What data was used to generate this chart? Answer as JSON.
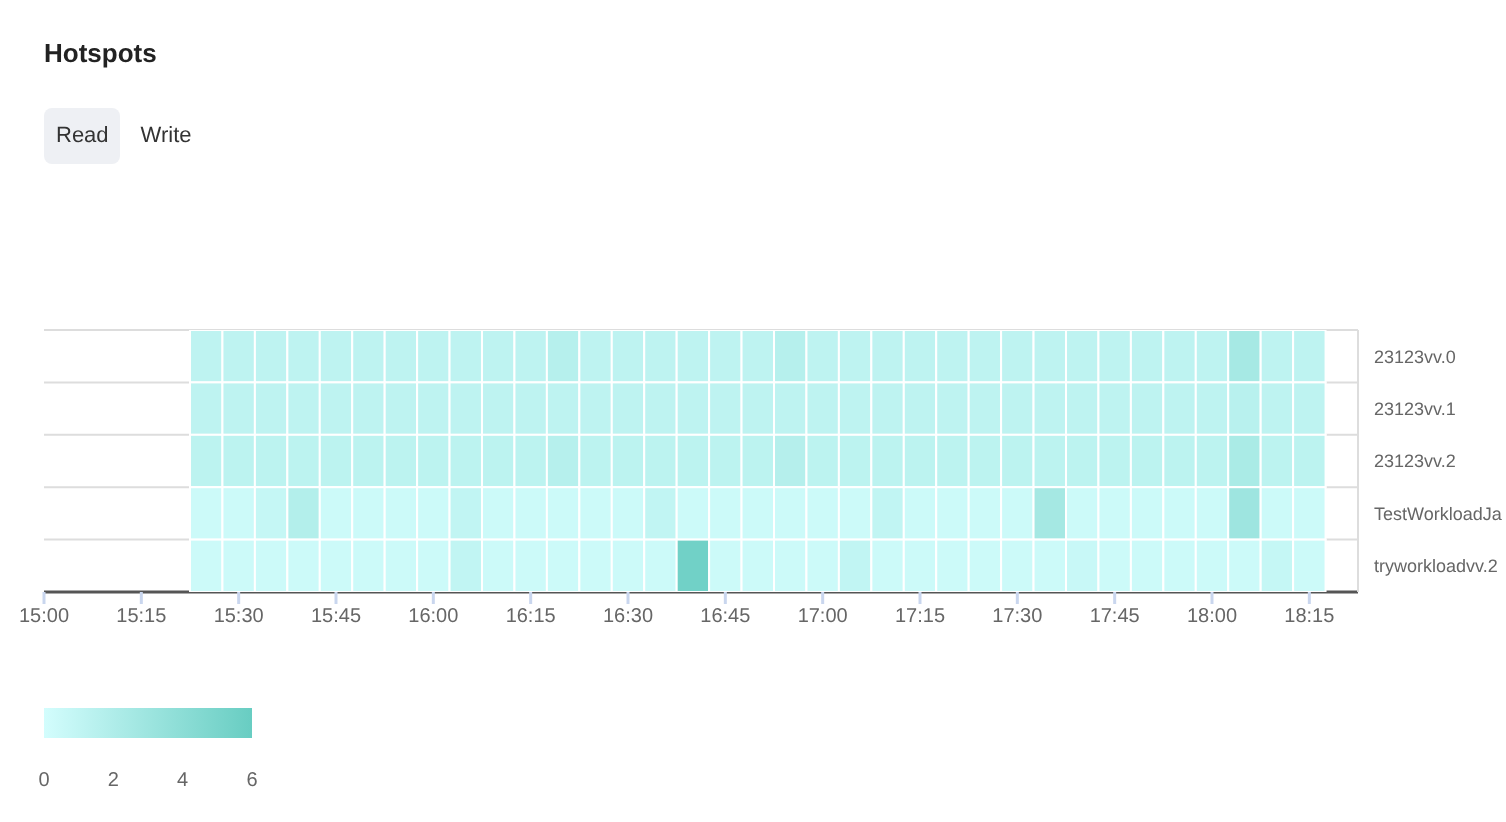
{
  "chart_data": {
    "type": "heatmap",
    "title": "Hotspots",
    "annotations": [
      "Read",
      "Write"
    ],
    "x": [
      15.4167,
      15.5,
      15.5833,
      15.6667,
      15.75,
      15.8333,
      15.9167,
      16,
      16.0833,
      16.1667,
      16.25,
      16.3333,
      16.4167,
      16.5,
      16.5833,
      16.6667,
      16.75,
      16.8333,
      16.9167,
      17,
      17.0833,
      17.1667,
      17.25,
      17.3333,
      17.4167,
      17.5,
      17.5833,
      17.6667,
      17.75,
      17.8333,
      17.9167,
      18,
      18.0833,
      18.1667,
      18.25
    ],
    "y_categories": [
      "23123vv.0",
      "23123vv.1",
      "23123vv.2",
      "TestWorkloadJa",
      "tryworkloadvv.2"
    ],
    "cells": [
      [
        1.2,
        1.2,
        1.2,
        1.2,
        1.2,
        1.2,
        1.2,
        1.2,
        1.2,
        1.2,
        1.2,
        1.6,
        1.2,
        1.2,
        1.2,
        1.2,
        1.2,
        1.2,
        1.6,
        1.2,
        1.2,
        1.2,
        1.2,
        1.2,
        1.2,
        1.2,
        1.2,
        1.2,
        1.2,
        1.2,
        1.2,
        1.2,
        2.5,
        1.2,
        1.2
      ],
      [
        1.2,
        1.2,
        1.2,
        1.2,
        1.2,
        1.2,
        1.2,
        1.2,
        1.2,
        1.2,
        1.2,
        1.2,
        1.2,
        1.2,
        1.2,
        1.2,
        1.2,
        1.2,
        1.2,
        1.2,
        1.2,
        1.2,
        1.2,
        1.2,
        1.2,
        1.2,
        1.2,
        1.2,
        1.2,
        1.2,
        1.2,
        1.2,
        1.5,
        1.2,
        1.2
      ],
      [
        1.3,
        1.3,
        1.3,
        1.3,
        1.3,
        1.3,
        1.3,
        1.3,
        1.3,
        1.3,
        1.3,
        1.6,
        1.3,
        1.3,
        1.3,
        1.3,
        1.3,
        1.3,
        1.7,
        1.3,
        1.3,
        1.3,
        1.3,
        1.3,
        1.3,
        1.3,
        1.3,
        1.3,
        1.3,
        1.3,
        1.3,
        1.3,
        2.3,
        1.3,
        1.3
      ],
      [
        0.4,
        0.4,
        0.8,
        1.8,
        0.4,
        0.4,
        0.4,
        0.4,
        1,
        0.4,
        0.4,
        0.4,
        0.4,
        0.4,
        1,
        0.4,
        0.4,
        0.4,
        0.4,
        0.4,
        0.4,
        1,
        0.4,
        0.4,
        0.4,
        0.4,
        2.6,
        0.4,
        0.4,
        0.4,
        0.4,
        0.4,
        3,
        0.4,
        0.4
      ],
      [
        0.4,
        0.4,
        0.4,
        0.4,
        0.4,
        0.4,
        0.4,
        0.4,
        1,
        0.4,
        0.4,
        0.4,
        0.4,
        0.4,
        0.4,
        5.5,
        0.4,
        0.4,
        0.4,
        0.4,
        1,
        0.4,
        0.4,
        0.4,
        0.4,
        0.4,
        0.4,
        0.6,
        0.4,
        0.4,
        0.4,
        0.4,
        0.4,
        0.8,
        0.4
      ]
    ],
    "xlim": [
      15,
      18.375
    ],
    "xticks": [
      {
        "value": 15,
        "label": "15:00"
      },
      {
        "value": 15.25,
        "label": "15:15"
      },
      {
        "value": 15.5,
        "label": "15:30"
      },
      {
        "value": 15.75,
        "label": "15:45"
      },
      {
        "value": 16,
        "label": "16:00"
      },
      {
        "value": 16.25,
        "label": "16:15"
      },
      {
        "value": 16.5,
        "label": "16:30"
      },
      {
        "value": 16.75,
        "label": "16:45"
      },
      {
        "value": 17,
        "label": "17:00"
      },
      {
        "value": 17.25,
        "label": "17:15"
      },
      {
        "value": 17.5,
        "label": "17:30"
      },
      {
        "value": 17.75,
        "label": "17:45"
      },
      {
        "value": 18,
        "label": "18:00"
      },
      {
        "value": 18.25,
        "label": "18:15"
      }
    ],
    "clim": [
      0,
      6
    ],
    "cticks": [
      0,
      2,
      4,
      6
    ],
    "grid": true
  }
}
